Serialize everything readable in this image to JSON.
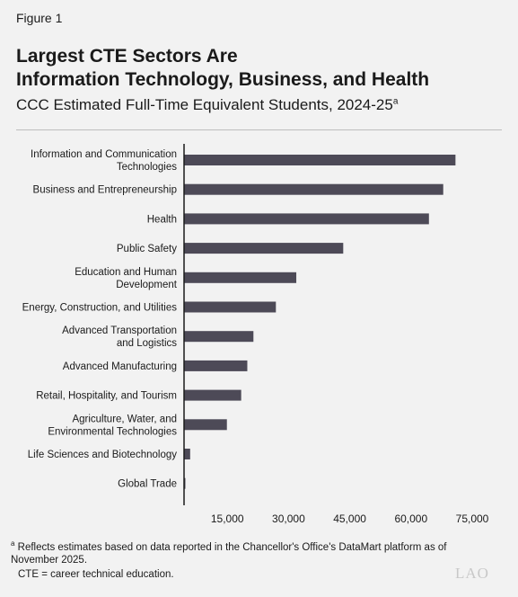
{
  "figure_label": "Figure 1",
  "title_lines": [
    "Largest CTE Sectors Are",
    "Information Technology, Business, and Health"
  ],
  "subtitle": "CCC Estimated Full-Time Equivalent Students, 2024-25",
  "subtitle_note_marker": "a",
  "footnote_marker": "a",
  "footnote": "Reflects estimates based on data reported in the Chancellor's Office's DataMart platform as of November 2025.",
  "abbreviation_note": "CTE = career technical education.",
  "logo_text": "LAO",
  "colors": {
    "bar": "#4d4a57",
    "axis": "#1a1a1a",
    "background": "#f2f2f2"
  },
  "chart_data": {
    "type": "bar",
    "orientation": "horizontal",
    "categories": [
      [
        "Information and Communication",
        "Technologies"
      ],
      [
        "Business and Entrepreneurship"
      ],
      [
        "Health"
      ],
      [
        "Public Safety"
      ],
      [
        "Education and Human",
        "Development"
      ],
      [
        "Energy, Construction, and Utilities"
      ],
      [
        "Advanced Transportation",
        "and Logistics"
      ],
      [
        "Advanced Manufacturing"
      ],
      [
        "Retail, Hospitality, and Tourism"
      ],
      [
        "Agriculture, Water, and",
        "Environmental Technologies"
      ],
      [
        "Life Sciences and Biotechnology"
      ],
      [
        "Global Trade"
      ]
    ],
    "values": [
      66500,
      63500,
      60000,
      39000,
      27500,
      22500,
      17000,
      15500,
      14000,
      10500,
      1500,
      300
    ],
    "xlim": [
      0,
      75000
    ],
    "xticks": [
      "15,000",
      "30,000",
      "45,000",
      "60,000",
      "75,000"
    ],
    "xtick_values": [
      15000,
      30000,
      45000,
      60000,
      75000
    ],
    "grid": false
  }
}
